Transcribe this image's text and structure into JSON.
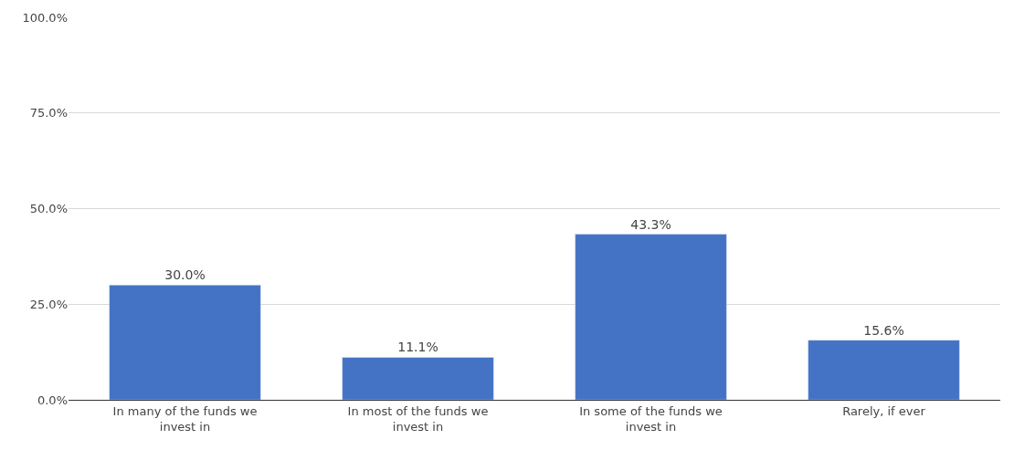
{
  "chart_data": {
    "type": "bar",
    "categories": [
      "In many of the funds we invest in",
      "In most of the funds we invest in",
      "In some of the funds we invest in",
      "Rarely, if ever"
    ],
    "values": [
      30.0,
      11.1,
      43.3,
      15.6
    ],
    "value_labels": [
      "30.0%",
      "11.1%",
      "43.3%",
      "15.6%"
    ],
    "color": "#4472c4",
    "ylim": [
      0,
      100
    ],
    "yticks": [
      {
        "value": 0,
        "label": "0.0%"
      },
      {
        "value": 25,
        "label": "25.0%"
      },
      {
        "value": 50,
        "label": "50.0%"
      },
      {
        "value": 75,
        "label": "75.0%"
      },
      {
        "value": 100,
        "label": "100.0%"
      }
    ],
    "grid": "y",
    "legend": false
  }
}
